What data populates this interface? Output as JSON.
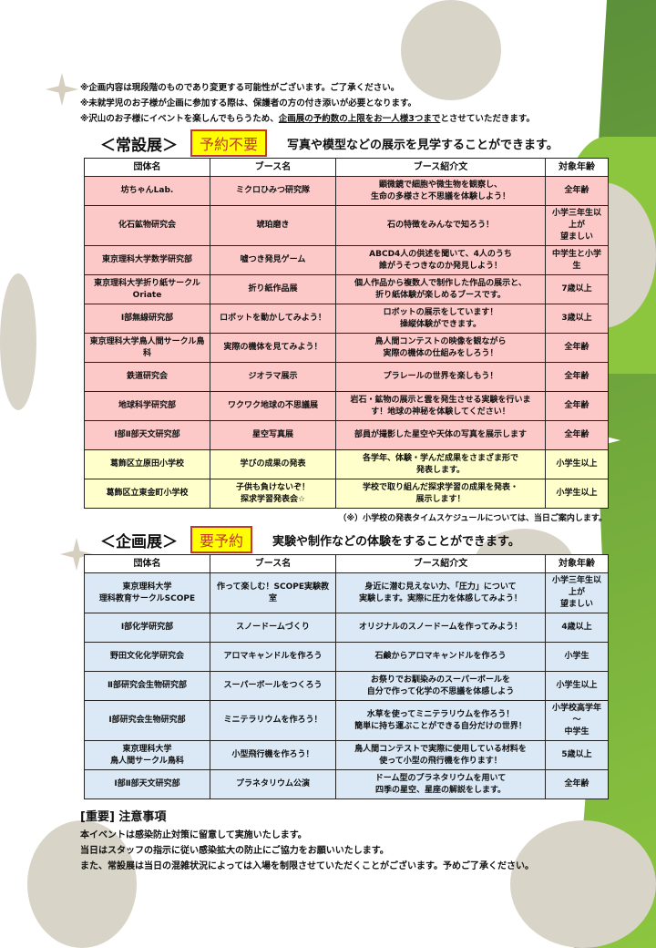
{
  "notes": [
    "※企画内容は現段階のものであり変更する可能性がございます。ご了承ください。",
    "※未就学児のお子様が企画に参加する際は、保護者の方の付き添いが必要となります。"
  ],
  "note3": {
    "pre": "※沢山のお子様にイベントを楽しんでもらうため、",
    "emph": "企画展の予約数の上限をお一人様3つまで",
    "post": "とさせていただきます。"
  },
  "permanent": {
    "title": "＜常設展＞",
    "badge": "予約不要",
    "desc": "写真や模型などの展示を見学することができます。",
    "headers": [
      "団体名",
      "ブース名",
      "ブース紹介文",
      "対象年齢"
    ],
    "rows": [
      [
        "坊ちゃんLab.",
        "ミクロひみつ研究隊",
        "顕微鏡で細胞や微生物を観察し、\n生命の多様さと不思議を体験しよう！",
        "全年齢"
      ],
      [
        "化石鉱物研究会",
        "琥珀磨き",
        "石の特徴をみんなで知ろう！",
        "小学三年生以上が\n望ましい"
      ],
      [
        "東京理科大学数学研究部",
        "嘘つき発見ゲーム",
        "ABCD4人の供述を聞いて、4人のうち\n誰がうそつきなのか発見しよう！",
        "中学生と小学生"
      ],
      [
        "東京理科大学折り紙サークル\nOriate",
        "折り紙作品展",
        "個人作品から複数人で制作した作品の展示と、\n折り紙体験が楽しめるブースです。",
        "7歳以上"
      ],
      [
        "Ⅰ部無線研究部",
        "ロボットを動かしてみよう！",
        "ロボットの展示をしています！\n操縦体験ができます。",
        "3歳以上"
      ],
      [
        "東京理科大学鳥人間サークル鳥科",
        "実際の機体を見てみよう！",
        "鳥人間コンテストの映像を観ながら\n実際の機体の仕組みをしろう！",
        "全年齢"
      ],
      [
        "鉄道研究会",
        "ジオラマ展示",
        "プラレールの世界を楽しもう！",
        "全年齢"
      ],
      [
        "地球科学研究部",
        "ワクワク地球の不思議展",
        "岩石・鉱物の展示と雲を発生させる実験を行いま\nす！地球の神秘を体験してください！",
        "全年齢"
      ],
      [
        "Ⅰ部Ⅱ部天文研究部",
        "星空写真展",
        "部員が撮影した星空や天体の写真を展示します",
        "全年齢"
      ]
    ],
    "school_rows": [
      [
        "葛飾区立原田小学校",
        "学びの成果の発表",
        "各学年、体験・学んだ成果をさまざま形で\n発表します。",
        "小学生以上"
      ],
      [
        "葛飾区立東金町小学校",
        "子供も負けないぞ！\n探求学習発表会☆",
        "学校で取り組んだ探求学習の成果を発表・\n展示します！",
        "小学生以上"
      ]
    ],
    "footnote": "（※）小学校の発表タイムスケジュールについては、当日ご案内します。"
  },
  "planned": {
    "title": "＜企画展＞",
    "badge": "要予約",
    "desc": "実験や制作などの体験をすることができます。",
    "headers": [
      "団体名",
      "ブース名",
      "ブース紹介文",
      "対象年齢"
    ],
    "rows": [
      [
        "東京理科大学\n理科教育サークルSCOPE",
        "作って楽しむ！SCOPE実験教室",
        "身近に潜む見えない力、「圧力」について\n実験します。実際に圧力を体感してみよう！",
        "小学三年生以上が\n望ましい"
      ],
      [
        "Ⅰ部化学研究部",
        "スノードームづくり",
        "オリジナルのスノードームを作ってみよう！",
        "4歳以上"
      ],
      [
        "野田文化化学研究会",
        "アロマキャンドルを作ろう",
        "石鹸からアロマキャンドルを作ろう",
        "小学生"
      ],
      [
        "Ⅱ部研究会生物研究部",
        "スーパーボールをつくろう",
        "お祭りでお馴染みのスーパーボールを\n自分で作って化学の不思議を体感しよう",
        "小学生以上"
      ],
      [
        "Ⅰ部研究会生物研究部",
        "ミニテラリウムを作ろう！",
        "水草を使ってミニテラリウムを作ろう！\n簡単に持ち運ぶことができる自分だけの世界！",
        "小学校高学年～\n中学生"
      ],
      [
        "東京理科大学\n鳥人間サークル鳥科",
        "小型飛行機を作ろう！",
        "鳥人間コンテストで実際に使用している材料を\n使って小型の飛行機を作ります！",
        "5歳以上"
      ],
      [
        "Ⅰ部Ⅱ部天文研究部",
        "プラネタリウム公演",
        "ドーム型のプラネタリウムを用いて\n四季の星空、星座の解説をします。",
        "全年齢"
      ]
    ]
  },
  "important": {
    "title": "[重要] 注意事項",
    "lines": [
      "本イベントは感染防止対策に留意して実施いたします。",
      "当日はスタッフの指示に従い感染拡大の防止にご協力をお願いいたします。",
      "また、常設展は当日の混雑状況によっては入場を制限させていただくことがございます。予めご了承ください。"
    ]
  },
  "colors": {
    "green": "#8cc63f",
    "pink": "#fcc8c8",
    "yellow": "#ffffcc",
    "blue": "#dbe9f6",
    "badge": "#ffff00"
  }
}
